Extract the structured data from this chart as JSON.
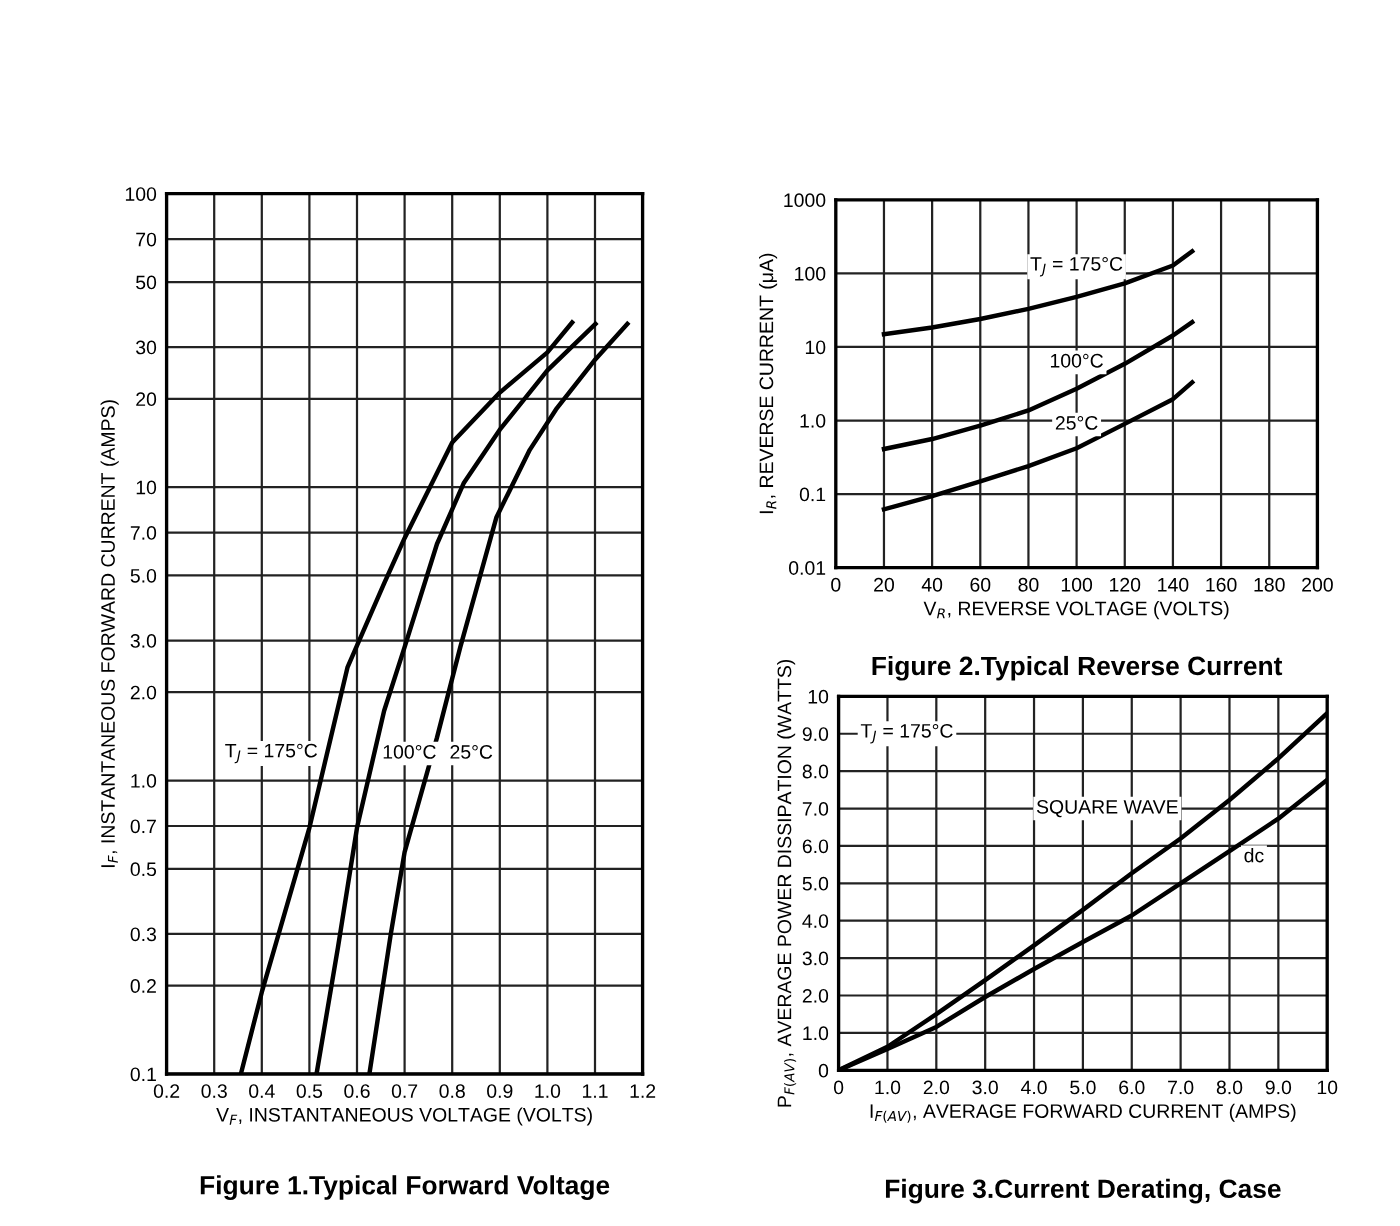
{
  "chart_data": [
    {
      "type": "line",
      "title": "Figure 1.Typical Forward Voltage",
      "xlabel": "V$_{F}$, INSTANTANEOUS VOLTAGE (VOLTS)",
      "ylabel": "I$_{F}$, INSTANTANEOUS FORWARD CURRENT (AMPS)",
      "log": "y",
      "grid": true,
      "xlim": [
        0.2,
        1.2
      ],
      "xticks": [
        0.2,
        0.3,
        0.4,
        0.5,
        0.6,
        0.7,
        0.8,
        0.9,
        {
          "value": 1.0,
          "label": "1.0"
        },
        1.1,
        1.2
      ],
      "ylim": [
        0.1,
        100
      ],
      "yticks": [
        0.1,
        0.2,
        0.3,
        0.5,
        0.7,
        {
          "value": 1,
          "label": "1.0"
        },
        {
          "value": 2,
          "label": "2.0"
        },
        {
          "value": 3,
          "label": "3.0"
        },
        {
          "value": 5,
          "label": "5.0"
        },
        {
          "value": 7,
          "label": "7.0"
        },
        10,
        20,
        30,
        50,
        70,
        100
      ],
      "series": [
        {
          "color": "#000000",
          "x": [
            0.356,
            0.4,
            0.5,
            0.58,
            0.657,
            0.7,
            0.8,
            0.9,
            1.0,
            1.052
          ],
          "values": [
            0.1,
            0.19,
            0.69,
            2.43,
            4.7,
            6.7,
            14.2,
            21,
            28.8,
            36.4
          ]
        },
        {
          "color": "#000000",
          "x": [
            0.515,
            0.56,
            0.6,
            0.657,
            0.7,
            0.768,
            0.824,
            0.9,
            1.0,
            1.101
          ],
          "values": [
            0.1,
            0.27,
            0.69,
            1.73,
            2.85,
            6.4,
            10.3,
            15.7,
            25,
            36
          ]
        },
        {
          "color": "#000000",
          "x": [
            0.626,
            0.671,
            0.7,
            0.768,
            0.817,
            0.893,
            0.963,
            1.018,
            1.101,
            1.168
          ],
          "values": [
            0.1,
            0.3,
            0.57,
            1.4,
            2.85,
            7.9,
            13.4,
            18.4,
            27.3,
            36
          ]
        }
      ],
      "annotations": [
        "T$_{J}$ = 175°C",
        "100°C",
        "25°C"
      ]
    },
    {
      "type": "line",
      "title": "Figure 2.Typical Reverse Current",
      "xlabel": "V$_{R}$, REVERSE VOLTAGE (VOLTS)",
      "ylabel": "I$_{R}$, REVERSE CURRENT (μA)",
      "log": "y",
      "grid": true,
      "xlim": [
        0,
        200
      ],
      "xticks": [
        0,
        20,
        40,
        60,
        80,
        100,
        120,
        140,
        160,
        180,
        200
      ],
      "ylim": [
        0.01,
        1000
      ],
      "yticks": [
        0.01,
        0.1,
        {
          "value": 1,
          "label": "1.0"
        },
        10,
        100,
        1000
      ],
      "series": [
        {
          "color": "#000000",
          "x": [
            20,
            40,
            60,
            80,
            100,
            120,
            140,
            148
          ],
          "values": [
            14.9,
            18.4,
            24,
            33,
            48,
            73,
            128,
            200
          ]
        },
        {
          "color": "#000000",
          "x": [
            20,
            40,
            60,
            80,
            100,
            120,
            140,
            148
          ],
          "values": [
            0.41,
            0.56,
            0.85,
            1.37,
            2.7,
            5.9,
            14.3,
            21.7
          ]
        },
        {
          "color": "#000000",
          "x": [
            20,
            40,
            60,
            80,
            100,
            120,
            140,
            148
          ],
          "values": [
            0.062,
            0.094,
            0.149,
            0.24,
            0.42,
            0.9,
            1.95,
            3.3
          ]
        }
      ],
      "annotations": [
        "T$_{J}$ = 175°C",
        "100°C",
        "25°C"
      ]
    },
    {
      "type": "line",
      "title": "Figure 3.Current Derating, Case",
      "xlabel": "I$_{F(AV)}$, AVERAGE FORWARD CURRENT (AMPS)",
      "ylabel": "P$_{F(AV)}$, AVERAGE POWER DISSIPATION (WATTS)",
      "grid": true,
      "xlim": [
        0,
        10
      ],
      "xticks": [
        0,
        {
          "value": 1,
          "label": "1.0"
        },
        {
          "value": 2,
          "label": "2.0"
        },
        {
          "value": 3,
          "label": "3.0"
        },
        {
          "value": 4,
          "label": "4.0"
        },
        {
          "value": 5,
          "label": "5.0"
        },
        {
          "value": 6,
          "label": "6.0"
        },
        {
          "value": 7,
          "label": "7.0"
        },
        {
          "value": 8,
          "label": "8.0"
        },
        {
          "value": 9,
          "label": "9.0"
        },
        10
      ],
      "ylim": [
        0,
        10
      ],
      "yticks": [
        0,
        {
          "value": 1,
          "label": "1.0"
        },
        {
          "value": 2,
          "label": "2.0"
        },
        {
          "value": 3,
          "label": "3.0"
        },
        {
          "value": 4,
          "label": "4.0"
        },
        {
          "value": 5,
          "label": "5.0"
        },
        {
          "value": 6,
          "label": "6.0"
        },
        {
          "value": 7,
          "label": "7.0"
        },
        {
          "value": 8,
          "label": "8.0"
        },
        {
          "value": 9,
          "label": "9.0"
        },
        10
      ],
      "series": [
        {
          "color": "#000000",
          "x": [
            0,
            1,
            2,
            3,
            4,
            5,
            6,
            7,
            8,
            9,
            10
          ],
          "values": [
            0,
            0.63,
            1.5,
            2.41,
            3.34,
            4.29,
            5.27,
            6.2,
            7.23,
            8.34,
            9.55
          ]
        },
        {
          "color": "#000000",
          "x": [
            0,
            1,
            2,
            3,
            4,
            5,
            6,
            7,
            8,
            9,
            10
          ],
          "values": [
            0,
            0.57,
            1.16,
            1.96,
            2.71,
            3.43,
            4.14,
            5.0,
            5.86,
            6.73,
            7.77
          ]
        }
      ],
      "annotations": [
        "T$_{J}$ = 175°C",
        "SQUARE WAVE",
        "dc"
      ]
    }
  ]
}
